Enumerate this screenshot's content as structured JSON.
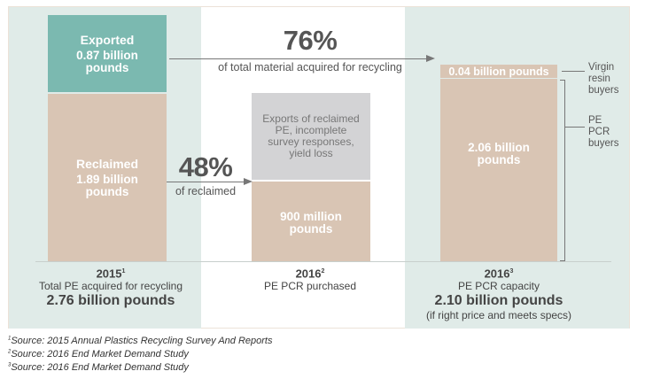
{
  "chart_data": {
    "type": "stacked-bar",
    "unit": "billion pounds",
    "columns": [
      {
        "year": "2015",
        "footnote": "1",
        "caption": "Total PE acquired for recycling",
        "total_label": "2.76 billion pounds",
        "segments": [
          {
            "name": "Reclaimed",
            "value": 1.89,
            "value_label": "1.89 billion pounds",
            "color": "#d9c5b4"
          },
          {
            "name": "Exported",
            "value": 0.87,
            "value_label": "0.87 billion pounds",
            "color": "#7bb9b0"
          }
        ]
      },
      {
        "year": "2016",
        "footnote": "2",
        "caption": "PE PCR purchased",
        "segments": [
          {
            "value": 0.9,
            "value_label": "900 million pounds",
            "color": "#d9c5b4"
          },
          {
            "name": "Exports of reclaimed PE, incomplete survey responses, yield loss",
            "color": "#d3d3d5"
          }
        ]
      },
      {
        "year": "2016",
        "footnote": "3",
        "caption": "PE PCR capacity",
        "total_label": "2.10 billion pounds",
        "note": "(if right price and meets specs)",
        "segments": [
          {
            "name": "PE PCR buyers",
            "value": 2.06,
            "value_label": "2.06 billion pounds",
            "color": "#d9c5b4"
          },
          {
            "name": "Virgin resin buyers",
            "value": 0.04,
            "value_label": "0.04 billion pounds",
            "color": "#d9c5b4"
          }
        ]
      }
    ],
    "annotations": [
      {
        "value": "76%",
        "text": "of total material acquired for recycling"
      },
      {
        "value": "48%",
        "text": "of reclaimed"
      }
    ],
    "colors": {
      "panel": "#e0ebe8",
      "teal": "#7bb9b0",
      "tan": "#d9c5b4",
      "gray": "#d3d3d5"
    }
  },
  "labels": {
    "exported": "Exported",
    "exported_val": "0.87 billion pounds",
    "reclaimed": "Reclaimed",
    "reclaimed_val": "1.89 billion pounds",
    "gray": "Exports of reclaimed PE, incomplete survey responses, yield loss",
    "purchased_val": "900 million pounds",
    "virgin_val": "0.04 billion pounds",
    "pcr_val": "2.06 billion pounds",
    "virgin": "Virgin resin buyers",
    "pcr": "PE PCR buyers",
    "pct76": "76%",
    "pct76_text": "of total material acquired for recycling",
    "pct48": "48%",
    "pct48_text": "of reclaimed"
  },
  "captions": {
    "c1_year": "2015",
    "c1_sup": "1",
    "c1_text": "Total PE acquired for recycling",
    "c1_total": "2.76 billion pounds",
    "c2_year": "2016",
    "c2_sup": "2",
    "c2_text": "PE PCR purchased",
    "c3_year": "2016",
    "c3_sup": "3",
    "c3_text": "PE PCR capacity",
    "c3_total": "2.10 billion pounds",
    "c3_note": "(if right price and meets specs)"
  },
  "footnotes": [
    {
      "sup": "1",
      "text": "Source: 2015 Annual Plastics Recycling Survey And Reports"
    },
    {
      "sup": "2",
      "text": "Source: 2016 End Market Demand Study"
    },
    {
      "sup": "3",
      "text": "Source: 2016 End Market Demand Study"
    }
  ]
}
